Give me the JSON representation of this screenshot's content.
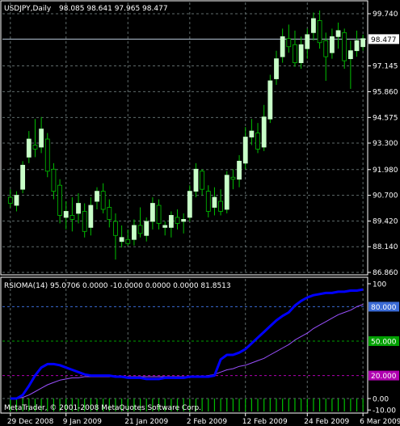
{
  "window": {
    "symbol_title": "USDJPY,Daily",
    "ohlc": "98.085 98.641 97.965 98.477",
    "current_price": "98.477"
  },
  "indicator": {
    "title": "RSIOMA(14) 95.0706 0.0000 -10.0000 0.0000 0.0000 81.8513",
    "levels": [
      "80.000",
      "50.000",
      "20.000"
    ],
    "level_colors": [
      "#3b6bd6",
      "#00a000",
      "#b000b0"
    ],
    "axis_ticks": [
      "100",
      "0.00",
      "-10.00"
    ]
  },
  "copyright": "MetaTrader, © 2001-2008 MetaQuotes Software Corp.",
  "colors": {
    "bull_candle": "#c8ffc8",
    "bear_candle": "#000000",
    "candle_wick": "#00c000",
    "grid": "#5f6b6b",
    "rsi_line": "#0000ff",
    "signal_line": "#9a50ff",
    "histogram": "#00c000",
    "price_tag_bg": "#ffffff"
  },
  "chart_data": [
    {
      "type": "candlestick",
      "title": "USDJPY,Daily",
      "y_ticks": [
        "99.740",
        "98.477",
        "97.145",
        "95.860",
        "94.575",
        "93.300",
        "91.980",
        "90.700",
        "89.420",
        "88.140",
        "86.860"
      ],
      "ylim": [
        86.86,
        99.74
      ],
      "current_price": 98.477,
      "x_ticks": [
        "29 Dec 2008",
        "9 Jan 2009",
        "21 Jan 2009",
        "2 Feb 2009",
        "12 Feb 2009",
        "24 Feb 2009",
        "6 Mar 2009"
      ],
      "candles": [
        [
          90.6,
          91.0,
          90.1,
          90.3
        ],
        [
          90.2,
          90.9,
          89.9,
          90.7
        ],
        [
          91.0,
          92.4,
          90.8,
          92.2
        ],
        [
          92.6,
          93.9,
          92.3,
          93.5
        ],
        [
          93.2,
          94.5,
          92.6,
          93.0
        ],
        [
          93.1,
          94.6,
          92.8,
          94.0
        ],
        [
          93.5,
          93.8,
          91.6,
          91.9
        ],
        [
          92.0,
          92.3,
          90.5,
          90.9
        ],
        [
          91.2,
          91.5,
          89.3,
          89.7
        ],
        [
          89.6,
          90.4,
          89.0,
          89.9
        ],
        [
          89.7,
          90.6,
          88.9,
          89.5
        ],
        [
          89.8,
          90.8,
          89.3,
          90.3
        ],
        [
          89.9,
          90.3,
          88.6,
          88.9
        ],
        [
          89.1,
          90.6,
          88.7,
          90.2
        ],
        [
          90.4,
          91.1,
          90.0,
          90.9
        ],
        [
          90.9,
          91.3,
          89.8,
          90.0
        ],
        [
          90.1,
          90.5,
          89.1,
          89.5
        ],
        [
          89.4,
          89.8,
          87.5,
          88.7
        ],
        [
          88.4,
          89.2,
          88.1,
          88.6
        ],
        [
          88.5,
          89.0,
          88.2,
          88.3
        ],
        [
          88.5,
          89.5,
          88.2,
          89.2
        ],
        [
          89.2,
          90.1,
          88.6,
          88.8
        ],
        [
          88.7,
          89.6,
          88.4,
          89.4
        ],
        [
          89.4,
          90.6,
          89.0,
          90.3
        ],
        [
          90.2,
          90.5,
          89.0,
          89.3
        ],
        [
          89.1,
          89.4,
          88.7,
          89.2
        ],
        [
          89.1,
          89.9,
          88.6,
          89.7
        ],
        [
          89.6,
          90.0,
          89.0,
          89.3
        ],
        [
          89.4,
          89.8,
          88.8,
          89.5
        ],
        [
          89.6,
          91.2,
          89.4,
          90.9
        ],
        [
          90.9,
          92.3,
          90.6,
          92.0
        ],
        [
          91.9,
          92.0,
          90.7,
          91.0
        ],
        [
          90.9,
          91.2,
          89.6,
          89.9
        ],
        [
          90.1,
          91.1,
          89.7,
          90.6
        ],
        [
          90.4,
          91.0,
          89.7,
          89.9
        ],
        [
          90.0,
          91.9,
          89.8,
          91.7
        ],
        [
          91.6,
          92.0,
          91.0,
          91.5
        ],
        [
          91.5,
          92.7,
          91.1,
          92.4
        ],
        [
          92.3,
          94.1,
          92.0,
          93.6
        ],
        [
          93.6,
          94.5,
          93.2,
          93.9
        ],
        [
          93.8,
          94.3,
          92.8,
          93.0
        ],
        [
          93.1,
          95.2,
          92.9,
          94.6
        ],
        [
          94.5,
          96.7,
          94.3,
          96.4
        ],
        [
          96.5,
          97.9,
          96.2,
          97.5
        ],
        [
          97.6,
          99.0,
          97.3,
          98.6
        ],
        [
          98.5,
          99.2,
          97.8,
          98.1
        ],
        [
          98.2,
          98.9,
          97.1,
          97.3
        ],
        [
          97.3,
          98.6,
          97.0,
          98.2
        ],
        [
          98.0,
          99.0,
          97.5,
          98.7
        ],
        [
          98.8,
          99.8,
          98.4,
          99.5
        ],
        [
          99.4,
          99.9,
          98.0,
          98.3
        ],
        [
          98.4,
          98.8,
          96.4,
          97.6
        ],
        [
          97.8,
          99.0,
          97.5,
          98.6
        ],
        [
          98.6,
          99.3,
          98.0,
          98.9
        ],
        [
          98.8,
          99.0,
          97.0,
          97.4
        ],
        [
          97.5,
          98.4,
          96.0,
          97.9
        ],
        [
          97.9,
          98.9,
          97.6,
          98.4
        ],
        [
          98.1,
          98.7,
          97.9,
          98.5
        ]
      ]
    },
    {
      "type": "line",
      "title": "RSIOMA(14)",
      "ylim": [
        -10,
        100
      ],
      "y_ticks": [
        "100",
        "80.000",
        "50.000",
        "20.000",
        "0.00",
        "-10.00"
      ],
      "x_ticks": [
        "29 Dec 2008",
        "9 Jan 2009",
        "21 Jan 2009",
        "2 Feb 2009",
        "12 Feb 2009",
        "24 Feb 2009",
        "6 Mar 2009"
      ],
      "series": [
        {
          "values": [
            0,
            0,
            3,
            11,
            20,
            27,
            30,
            30,
            29,
            27,
            25,
            23,
            21,
            20,
            20,
            20,
            20,
            19,
            19,
            18,
            18,
            18,
            17,
            17,
            17,
            18,
            18,
            18,
            18,
            19,
            19,
            19,
            19,
            20,
            34,
            38,
            38,
            40,
            43,
            48,
            53,
            58,
            63,
            68,
            72,
            75,
            81,
            85,
            88,
            90,
            91,
            92,
            92,
            93,
            93,
            94,
            94,
            95
          ]
        },
        {
          "values": [
            0,
            0,
            1,
            3,
            6,
            9,
            12,
            14,
            16,
            17,
            18,
            18,
            19,
            19,
            19,
            19,
            19,
            19,
            19,
            19,
            19,
            19,
            19,
            19,
            19,
            19,
            19,
            19,
            19,
            19,
            19,
            19,
            20,
            21,
            23,
            25,
            26,
            28,
            29,
            31,
            33,
            35,
            38,
            41,
            44,
            47,
            51,
            54,
            57,
            61,
            64,
            67,
            70,
            73,
            75,
            77,
            80,
            82
          ]
        },
        {
          "values": [
            0,
            0,
            0,
            0,
            0,
            0,
            0,
            0,
            0,
            0,
            0,
            0,
            0,
            0,
            0,
            0,
            0,
            0,
            0,
            0,
            0,
            0,
            0,
            0,
            0,
            0,
            0,
            0,
            0,
            0,
            0,
            0,
            0,
            0,
            0,
            0,
            0,
            0,
            0,
            0,
            0,
            0,
            0,
            0,
            0,
            0,
            0,
            0,
            0,
            0,
            0,
            0,
            0,
            0,
            0,
            0,
            0,
            0
          ]
        }
      ]
    }
  ]
}
